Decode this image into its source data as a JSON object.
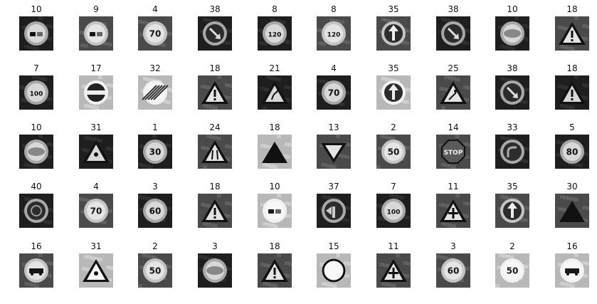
{
  "figure": {
    "rows": 5,
    "cols": 10,
    "cells": [
      {
        "label": "10",
        "shape": "circle-no-overtaking",
        "tone": "dark"
      },
      {
        "label": "9",
        "shape": "circle-no-overtaking",
        "tone": "mid"
      },
      {
        "label": "4",
        "shape": "circle-number",
        "text": "70",
        "tone": "mid"
      },
      {
        "label": "38",
        "shape": "circle-arrow-down-right",
        "tone": "dark"
      },
      {
        "label": "8",
        "shape": "circle-number",
        "text": "120",
        "tone": "dark"
      },
      {
        "label": "8",
        "shape": "circle-number",
        "text": "120",
        "tone": "mid"
      },
      {
        "label": "35",
        "shape": "circle-arrow-up",
        "tone": "mid"
      },
      {
        "label": "38",
        "shape": "circle-arrow-down-right",
        "tone": "dark"
      },
      {
        "label": "10",
        "shape": "circle-blur",
        "tone": "dark"
      },
      {
        "label": "18",
        "shape": "triangle-exclaim",
        "tone": "mid"
      },
      {
        "label": "7",
        "shape": "circle-number",
        "text": "100",
        "tone": "dark"
      },
      {
        "label": "17",
        "shape": "circle-bar",
        "tone": "light"
      },
      {
        "label": "32",
        "shape": "circle-end",
        "tone": "light"
      },
      {
        "label": "18",
        "shape": "triangle-exclaim",
        "tone": "mid"
      },
      {
        "label": "21",
        "shape": "triangle-curve",
        "tone": "dark"
      },
      {
        "label": "4",
        "shape": "circle-number",
        "text": "70",
        "tone": "dark"
      },
      {
        "label": "35",
        "shape": "circle-arrow-up",
        "tone": "light"
      },
      {
        "label": "25",
        "shape": "triangle-work",
        "tone": "mid"
      },
      {
        "label": "38",
        "shape": "circle-arrow-down-right",
        "tone": "dark"
      },
      {
        "label": "18",
        "shape": "triangle-exclaim",
        "tone": "dark"
      },
      {
        "label": "10",
        "shape": "circle-blur",
        "tone": "dark"
      },
      {
        "label": "31",
        "shape": "triangle-small",
        "tone": "dark"
      },
      {
        "label": "1",
        "shape": "circle-number",
        "text": "30",
        "tone": "dark"
      },
      {
        "label": "24",
        "shape": "triangle-narrow",
        "tone": "mid"
      },
      {
        "label": "18",
        "shape": "triangle-solid",
        "tone": "light"
      },
      {
        "label": "13",
        "shape": "triangle-inverted",
        "tone": "mid"
      },
      {
        "label": "2",
        "shape": "circle-number",
        "text": "50",
        "tone": "mid"
      },
      {
        "label": "14",
        "shape": "octagon-stop",
        "text": "STOP",
        "tone": "mid"
      },
      {
        "label": "33",
        "shape": "circle-turn",
        "tone": "dark"
      },
      {
        "label": "5",
        "shape": "circle-number",
        "text": "80",
        "tone": "dark"
      },
      {
        "label": "40",
        "shape": "circle-roundabout",
        "tone": "dark"
      },
      {
        "label": "4",
        "shape": "circle-number",
        "text": "70",
        "tone": "mid"
      },
      {
        "label": "3",
        "shape": "circle-number",
        "text": "60",
        "tone": "dark"
      },
      {
        "label": "18",
        "shape": "triangle-exclaim",
        "tone": "mid"
      },
      {
        "label": "10",
        "shape": "circle-no-overtaking",
        "tone": "light"
      },
      {
        "label": "37",
        "shape": "circle-arrow-left",
        "tone": "dark"
      },
      {
        "label": "7",
        "shape": "circle-number",
        "text": "100",
        "tone": "dark"
      },
      {
        "label": "11",
        "shape": "triangle-cross",
        "tone": "mid"
      },
      {
        "label": "35",
        "shape": "circle-arrow-up",
        "tone": "mid"
      },
      {
        "label": "30",
        "shape": "triangle-solid",
        "tone": "mid"
      },
      {
        "label": "16",
        "shape": "circle-truck",
        "tone": "mid"
      },
      {
        "label": "31",
        "shape": "triangle-small",
        "tone": "light"
      },
      {
        "label": "2",
        "shape": "circle-number",
        "text": "50",
        "tone": "mid"
      },
      {
        "label": "3",
        "shape": "circle-blur",
        "tone": "dark"
      },
      {
        "label": "18",
        "shape": "triangle-exclaim",
        "tone": "mid"
      },
      {
        "label": "15",
        "shape": "circle-empty",
        "tone": "light"
      },
      {
        "label": "11",
        "shape": "triangle-cross",
        "tone": "mid"
      },
      {
        "label": "3",
        "shape": "circle-number",
        "text": "60",
        "tone": "mid"
      },
      {
        "label": "2",
        "shape": "circle-number",
        "text": "50",
        "tone": "light"
      },
      {
        "label": "16",
        "shape": "circle-truck",
        "tone": "light"
      }
    ]
  }
}
